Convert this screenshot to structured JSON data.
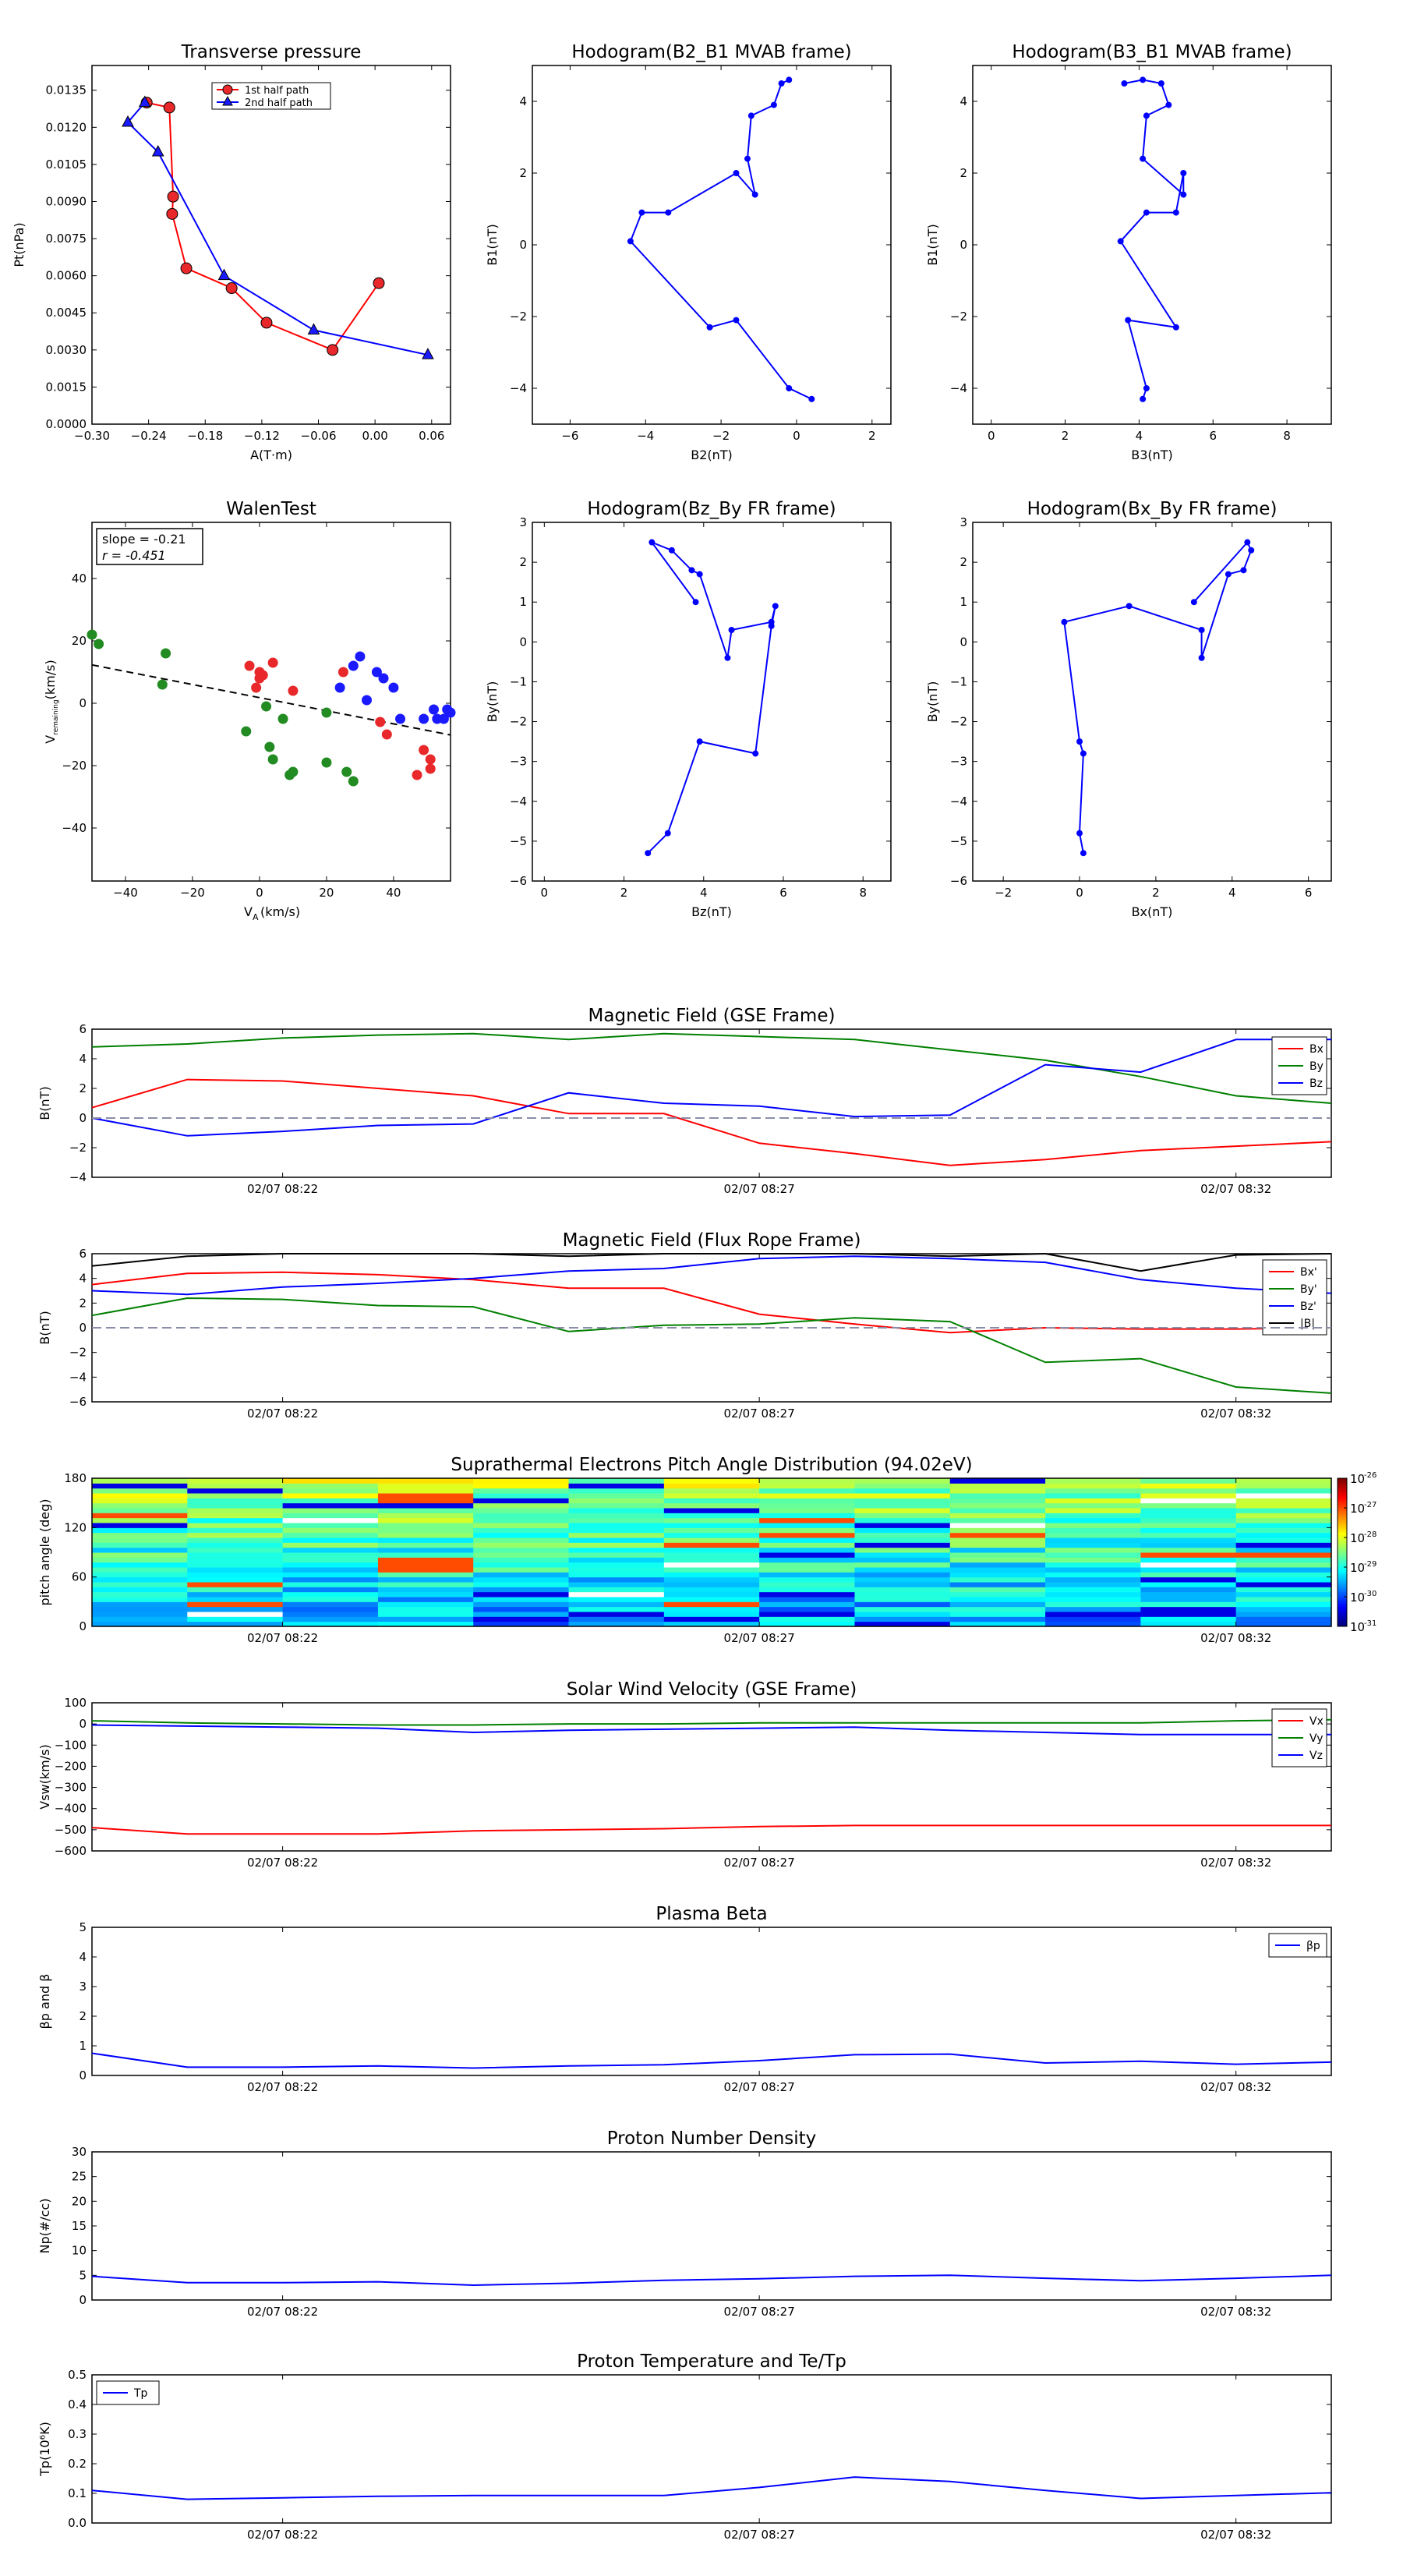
{
  "colors": {
    "red": "#ff0000",
    "green": "#008000",
    "blue": "#0000ff",
    "black": "#000000",
    "redmark": "#e8282a",
    "greenmark": "#228b22",
    "bluemark": "#1a1aff",
    "gray": "#8a8ea8"
  },
  "charts": {
    "tp": {
      "title": "Transverse pressure",
      "xlabel": "A(T·m)",
      "ylabel": "Pt(nPa)",
      "xlim": [
        -0.3,
        0.08
      ],
      "ylim": [
        0,
        0.0145
      ],
      "xticks": [
        "−0.30",
        "−0.24",
        "−0.18",
        "−0.12",
        "−0.06",
        "0.00",
        "0.06"
      ],
      "yticks": [
        "0.0000",
        "0.0015",
        "0.0030",
        "0.0045",
        "0.0060",
        "0.0075",
        "0.0090",
        "0.0105",
        "0.0120",
        "0.0135"
      ],
      "legend": [
        "1st half path",
        "2nd half path"
      ]
    },
    "h1": {
      "title": "Hodogram(B2_B1 MVAB frame)",
      "xlabel": "B2(nT)",
      "ylabel": "B1(nT)",
      "xticks": [
        "−6",
        "−4",
        "−2",
        "0",
        "2"
      ],
      "yticks": [
        "−4",
        "−2",
        "0",
        "2",
        "4"
      ]
    },
    "h2": {
      "title": "Hodogram(B3_B1 MVAB frame)",
      "xlabel": "B3(nT)",
      "ylabel": "B1(nT)",
      "xticks": [
        "0",
        "2",
        "4",
        "6",
        "8"
      ],
      "yticks": [
        "−4",
        "−2",
        "0",
        "2",
        "4"
      ]
    },
    "walen": {
      "title": "WalenTest",
      "xlabel": "V",
      "xlabel_sub": "A",
      "xlabel_unit": "(km/s)",
      "ylabel": "V",
      "ylabel_sub": "remaining",
      "ylabel_unit": "(km/s)",
      "slope": "slope = -0.21",
      "r": "r = -0.451",
      "xticks": [
        "−40",
        "−20",
        "0",
        "20",
        "40"
      ],
      "yticks": [
        "−40",
        "−20",
        "0",
        "20",
        "40"
      ]
    },
    "h3": {
      "title": "Hodogram(Bz_By FR frame)",
      "xlabel": "Bz(nT)",
      "ylabel": "By(nT)",
      "xticks": [
        "0",
        "2",
        "4",
        "6",
        "8"
      ],
      "yticks": [
        "−6",
        "−5",
        "−4",
        "−3",
        "−2",
        "−1",
        "0",
        "1",
        "2",
        "3"
      ]
    },
    "h4": {
      "title": "Hodogram(Bx_By FR frame)",
      "xlabel": "Bx(nT)",
      "ylabel": "By(nT)",
      "xticks": [
        "−2",
        "0",
        "2",
        "4",
        "6"
      ],
      "yticks": [
        "−6",
        "−5",
        "−4",
        "−3",
        "−2",
        "−1",
        "0",
        "1",
        "2",
        "3"
      ]
    },
    "mag": {
      "title": "Magnetic Field (GSE Frame)",
      "ylabel": "B(nT)",
      "yticks": [
        "−4",
        "−2",
        "0",
        "2",
        "4",
        "6"
      ],
      "legend": [
        "Bx",
        "By",
        "Bz"
      ]
    },
    "magfr": {
      "title": "Magnetic Field (Flux Rope Frame)",
      "ylabel": "B(nT)",
      "yticks": [
        "−6",
        "−4",
        "−2",
        "0",
        "2",
        "4",
        "6"
      ],
      "legend": [
        "Bx'",
        "By'",
        "Bz'",
        "|B|"
      ]
    },
    "pad": {
      "title": "Suprathermal Electrons Pitch Angle Distribution (94.02eV)",
      "ylabel": "pitch angle (deg)",
      "yticks": [
        "0",
        "60",
        "120",
        "180"
      ],
      "cbar_ticks": [
        [
          "10",
          "-26"
        ],
        [
          "10",
          "-27"
        ],
        [
          "10",
          "-28"
        ],
        [
          "10",
          "-29"
        ],
        [
          "10",
          "-30"
        ],
        [
          "10",
          "-31"
        ]
      ]
    },
    "vsw": {
      "title": "Solar Wind Velocity (GSE Frame)",
      "ylabel": "Vsw(km/s)",
      "yticks": [
        "−600",
        "−500",
        "−400",
        "−300",
        "−200",
        "−100",
        "0",
        "100"
      ],
      "legend": [
        "Vx",
        "Vy",
        "Vz"
      ]
    },
    "beta": {
      "title": "Plasma Beta",
      "ylabel": "βp and β",
      "yticks": [
        "0",
        "1",
        "2",
        "3",
        "4",
        "5"
      ],
      "legend": [
        "βp"
      ]
    },
    "np": {
      "title": "Proton Number Density",
      "ylabel": "Np(#/cc)",
      "yticks": [
        "0",
        "5",
        "10",
        "15",
        "20",
        "25",
        "30"
      ]
    },
    "tpt": {
      "title": "Proton Temperature and Te/Tp",
      "ylabel": "Tp(10⁶K)",
      "yticks": [
        "0.0",
        "0.1",
        "0.2",
        "0.3",
        "0.4",
        "0.5"
      ],
      "legend": [
        "Tp"
      ]
    },
    "time_ticks": [
      "02/07 08:22",
      "02/07 08:27",
      "02/07 08:32"
    ]
  },
  "chart_data": [
    {
      "type": "line",
      "title": "Transverse pressure",
      "xlabel": "A(T·m)",
      "ylabel": "Pt(nPa)",
      "xlim": [
        -0.3,
        0.08
      ],
      "ylim": [
        0,
        0.0145
      ],
      "series": [
        {
          "name": "1st half path",
          "x": [
            0.004,
            -0.045,
            -0.115,
            -0.152,
            -0.2,
            -0.215,
            -0.214,
            -0.218,
            -0.242
          ],
          "y": [
            0.0057,
            0.003,
            0.0041,
            0.0055,
            0.0063,
            0.0085,
            0.0092,
            0.0128,
            0.013
          ]
        },
        {
          "name": "2nd half path",
          "x": [
            0.056,
            -0.065,
            -0.16,
            -0.23,
            -0.262,
            -0.244
          ],
          "y": [
            0.0028,
            0.0038,
            0.006,
            0.011,
            0.0122,
            0.013
          ]
        }
      ]
    },
    {
      "type": "line",
      "title": "Hodogram(B2_B1 MVAB frame)",
      "xlabel": "B2(nT)",
      "ylabel": "B1(nT)",
      "xlim": [
        -7,
        2.5
      ],
      "ylim": [
        -5,
        5
      ],
      "x": [
        0.4,
        -0.2,
        -1.6,
        -2.3,
        -4.4,
        -4.1,
        -3.4,
        -1.6,
        -1.1,
        -1.3,
        -1.2,
        -0.6,
        -0.4,
        -0.2
      ],
      "y": [
        -4.3,
        -4.0,
        -2.1,
        -2.3,
        0.1,
        0.9,
        0.9,
        2.0,
        1.4,
        2.4,
        3.6,
        3.9,
        4.5,
        4.6
      ]
    },
    {
      "type": "line",
      "title": "Hodogram(B3_B1 MVAB frame)",
      "xlabel": "B3(nT)",
      "ylabel": "B1(nT)",
      "xlim": [
        -0.5,
        9.2
      ],
      "ylim": [
        -5,
        5
      ],
      "x": [
        4.1,
        4.2,
        3.7,
        5.0,
        3.5,
        4.2,
        5.0,
        5.2,
        5.2,
        4.1,
        4.2,
        4.8,
        4.6,
        4.1,
        3.6
      ],
      "y": [
        -4.3,
        -4.0,
        -2.1,
        -2.3,
        0.1,
        0.9,
        0.9,
        2.0,
        1.4,
        2.4,
        3.6,
        3.9,
        4.5,
        4.6,
        4.5
      ]
    },
    {
      "type": "scatter",
      "title": "WalenTest",
      "xlim": [
        -50,
        57
      ],
      "ylim": [
        -57,
        58
      ],
      "fit": {
        "slope": -0.21,
        "intercept": 1.8
      },
      "series": [
        {
          "name": "",
          "color": "green",
          "x": [
            -50,
            -48,
            -28,
            -29,
            -4,
            2,
            3,
            4,
            7,
            9,
            10,
            20,
            20,
            26,
            28
          ],
          "y": [
            22,
            19,
            16,
            6,
            -9,
            -1,
            -14,
            -18,
            -5,
            -23,
            -22,
            -3,
            -19,
            -22,
            -25
          ]
        },
        {
          "name": "",
          "color": "red",
          "x": [
            -3,
            -1,
            0,
            0,
            1,
            4,
            10,
            25,
            36,
            38,
            47,
            49,
            51,
            51
          ],
          "y": [
            12,
            5,
            8,
            10,
            9,
            13,
            4,
            10,
            -6,
            -10,
            -23,
            -15,
            -18,
            -21
          ]
        },
        {
          "name": "",
          "color": "blue",
          "x": [
            24,
            28,
            30,
            32,
            35,
            37,
            40,
            42,
            49,
            52,
            53,
            55,
            56,
            57
          ],
          "y": [
            5,
            12,
            15,
            1,
            10,
            8,
            5,
            -5,
            -5,
            -2,
            -5,
            -5,
            -2,
            -3
          ]
        }
      ]
    },
    {
      "type": "line",
      "title": "Hodogram(Bz_By FR frame)",
      "xlabel": "Bz(nT)",
      "ylabel": "By(nT)",
      "xlim": [
        -0.3,
        8.7
      ],
      "ylim": [
        -6,
        3
      ],
      "x": [
        2.6,
        3.1,
        3.9,
        5.3,
        5.7,
        5.8,
        5.7,
        4.7,
        4.6,
        3.9,
        3.7,
        3.2,
        2.7,
        3.8
      ],
      "y": [
        -5.3,
        -4.8,
        -2.5,
        -2.8,
        0.4,
        0.9,
        0.5,
        0.3,
        -0.4,
        1.7,
        1.8,
        2.3,
        2.5,
        1.0
      ]
    },
    {
      "type": "line",
      "title": "Hodogram(Bx_By FR frame)",
      "xlabel": "Bx(nT)",
      "ylabel": "By(nT)",
      "xlim": [
        -2.8,
        6.6
      ],
      "ylim": [
        -6,
        3
      ],
      "x": [
        0.1,
        0.0,
        0.1,
        0.0,
        -0.4,
        1.3,
        3.2,
        3.2,
        3.9,
        4.3,
        4.5,
        4.4,
        3.0
      ],
      "y": [
        -5.3,
        -4.8,
        -2.8,
        -2.5,
        0.5,
        0.9,
        0.3,
        -0.4,
        1.7,
        1.8,
        2.3,
        2.5,
        1.0
      ]
    },
    {
      "type": "line",
      "title": "Magnetic Field (GSE Frame)",
      "ylabel": "B(nT)",
      "ylim": [
        -4,
        6
      ],
      "xlim": [
        0,
        13
      ],
      "x": [
        0,
        1,
        2,
        3,
        4,
        5,
        6,
        7,
        8,
        9,
        10,
        11,
        12,
        13
      ],
      "xticks": [
        2,
        7,
        12
      ],
      "series": [
        {
          "name": "Bx",
          "values": [
            0.7,
            2.6,
            2.5,
            2.0,
            1.5,
            0.3,
            0.3,
            -1.7,
            -2.4,
            -3.2,
            -2.8,
            -2.2,
            -1.9,
            -1.6
          ]
        },
        {
          "name": "By",
          "values": [
            4.8,
            5.0,
            5.4,
            5.6,
            5.7,
            5.3,
            5.7,
            5.5,
            5.3,
            4.6,
            3.9,
            2.8,
            1.5,
            1.0
          ]
        },
        {
          "name": "Bz",
          "values": [
            0.0,
            -1.2,
            -0.9,
            -0.5,
            -0.4,
            1.7,
            1.0,
            0.8,
            0.1,
            0.2,
            3.6,
            3.1,
            5.3,
            5.3
          ]
        }
      ]
    },
    {
      "type": "line",
      "title": "Magnetic Field (Flux Rope Frame)",
      "ylabel": "B(nT)",
      "ylim": [
        -6,
        6
      ],
      "xlim": [
        0,
        13
      ],
      "x": [
        0,
        1,
        2,
        3,
        4,
        5,
        6,
        7,
        8,
        9,
        10,
        11,
        12,
        13
      ],
      "xticks": [
        2,
        7,
        12
      ],
      "series": [
        {
          "name": "Bx'",
          "values": [
            3.5,
            4.4,
            4.5,
            4.3,
            3.9,
            3.2,
            3.2,
            1.1,
            0.3,
            -0.4,
            0.0,
            -0.1,
            -0.1,
            0.0
          ]
        },
        {
          "name": "By'",
          "values": [
            1.0,
            2.4,
            2.3,
            1.8,
            1.7,
            -0.3,
            0.2,
            0.3,
            0.8,
            0.5,
            -2.8,
            -2.5,
            -4.8,
            -5.3
          ]
        },
        {
          "name": "Bz'",
          "values": [
            3.0,
            2.7,
            3.3,
            3.6,
            4.0,
            4.6,
            4.8,
            5.6,
            5.8,
            5.6,
            5.3,
            3.9,
            3.2,
            2.8
          ]
        },
        {
          "name": "|B|",
          "values": [
            5.0,
            5.8,
            6.0,
            6.0,
            6.0,
            5.8,
            6.0,
            6.0,
            6.0,
            5.8,
            6.0,
            4.6,
            5.9,
            6.0
          ]
        }
      ]
    },
    {
      "type": "heatmap",
      "title": "Suprathermal Electrons Pitch Angle Distribution (94.02eV)",
      "ylabel": "pitch angle (deg)",
      "ylim": [
        0,
        180
      ],
      "xlim": [
        0,
        13
      ],
      "columns": 13,
      "rows": 30,
      "colorbar": {
        "log10_range": [
          -31,
          -26
        ]
      }
    },
    {
      "type": "line",
      "title": "Solar Wind Velocity (GSE Frame)",
      "ylabel": "Vsw(km/s)",
      "ylim": [
        -600,
        100
      ],
      "xlim": [
        0,
        13
      ],
      "x": [
        0,
        1,
        2,
        3,
        4,
        5,
        6,
        7,
        8,
        9,
        10,
        11,
        12,
        13
      ],
      "xticks": [
        2,
        7,
        12
      ],
      "series": [
        {
          "name": "Vx",
          "values": [
            -490,
            -520,
            -520,
            -520,
            -505,
            -500,
            -495,
            -485,
            -480,
            -480,
            -480,
            -480,
            -480,
            -480
          ]
        },
        {
          "name": "Vy",
          "values": [
            15,
            5,
            0,
            -5,
            -5,
            0,
            0,
            5,
            5,
            5,
            5,
            5,
            15,
            20
          ]
        },
        {
          "name": "Vz",
          "values": [
            -5,
            -10,
            -15,
            -20,
            -40,
            -30,
            -25,
            -20,
            -15,
            -30,
            -40,
            -50,
            -50,
            -50
          ]
        }
      ]
    },
    {
      "type": "line",
      "title": "Plasma Beta",
      "ylabel": "βp and β",
      "ylim": [
        0,
        5
      ],
      "xlim": [
        0,
        13
      ],
      "x": [
        0,
        1,
        2,
        3,
        4,
        5,
        6,
        7,
        8,
        9,
        10,
        11,
        12,
        13
      ],
      "xticks": [
        2,
        7,
        12
      ],
      "series": [
        {
          "name": "βp",
          "values": [
            0.75,
            0.28,
            0.28,
            0.32,
            0.25,
            0.32,
            0.36,
            0.5,
            0.7,
            0.72,
            0.42,
            0.48,
            0.38,
            0.45
          ]
        }
      ]
    },
    {
      "type": "line",
      "title": "Proton Number Density",
      "ylabel": "Np(#/cc)",
      "ylim": [
        0,
        30
      ],
      "xlim": [
        0,
        13
      ],
      "x": [
        0,
        1,
        2,
        3,
        4,
        5,
        6,
        7,
        8,
        9,
        10,
        11,
        12,
        13
      ],
      "xticks": [
        2,
        7,
        12
      ],
      "series": [
        {
          "name": "",
          "values": [
            4.8,
            3.5,
            3.5,
            3.7,
            3.0,
            3.4,
            4.0,
            4.3,
            4.8,
            5.0,
            4.4,
            3.9,
            4.4,
            5.0
          ]
        }
      ]
    },
    {
      "type": "line",
      "title": "Proton Temperature and Te/Tp",
      "ylabel": "Tp(10⁶K)",
      "ylim": [
        0,
        0.5
      ],
      "xlim": [
        0,
        13
      ],
      "x": [
        0,
        1,
        2,
        3,
        4,
        5,
        6,
        7,
        8,
        9,
        10,
        11,
        12,
        13
      ],
      "xticks": [
        2,
        7,
        12
      ],
      "series": [
        {
          "name": "Tp",
          "values": [
            0.11,
            0.08,
            0.085,
            0.09,
            0.093,
            0.093,
            0.093,
            0.12,
            0.155,
            0.14,
            0.11,
            0.083,
            0.093,
            0.102
          ]
        }
      ]
    }
  ]
}
